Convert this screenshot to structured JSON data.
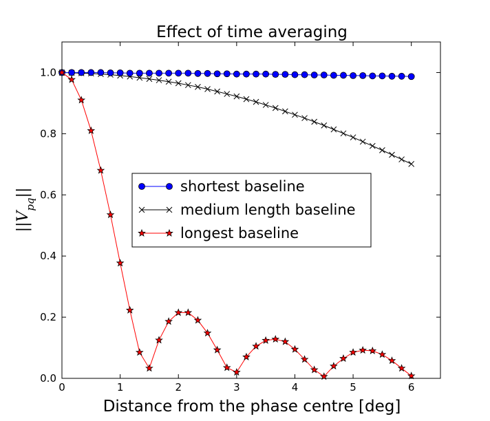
{
  "chart_data": {
    "type": "line",
    "title": "Effect of time averaging",
    "xlabel": "Distance from the phase centre [deg]",
    "ylabel": "||V_pq||",
    "xlim": [
      0,
      6.5
    ],
    "ylim": [
      0,
      1.1
    ],
    "xticks": [
      "0",
      "1",
      "2",
      "3",
      "4",
      "5",
      "6"
    ],
    "yticks": [
      "0.0",
      "0.2",
      "0.4",
      "0.6",
      "0.8",
      "1.0"
    ],
    "grid": false,
    "legend_position": "center",
    "x": [
      0.0,
      0.1667,
      0.3333,
      0.5,
      0.6667,
      0.8333,
      1.0,
      1.1667,
      1.3333,
      1.5,
      1.6667,
      1.8333,
      2.0,
      2.1667,
      2.3333,
      2.5,
      2.6667,
      2.8333,
      3.0,
      3.1667,
      3.3333,
      3.5,
      3.6667,
      3.8333,
      4.0,
      4.1667,
      4.3333,
      4.5,
      4.6667,
      4.8333,
      5.0,
      5.1667,
      5.3333,
      5.5,
      5.6667,
      5.8333,
      6.0
    ],
    "series": [
      {
        "name": "shortest baseline",
        "marker": "circle",
        "color": "#0000ff",
        "values": [
          1.0,
          1.0,
          1.0,
          1.0,
          1.0,
          0.999,
          0.999,
          0.998,
          0.998,
          0.998,
          0.998,
          0.998,
          0.998,
          0.998,
          0.997,
          0.997,
          0.996,
          0.996,
          0.995,
          0.995,
          0.995,
          0.995,
          0.994,
          0.994,
          0.993,
          0.993,
          0.992,
          0.992,
          0.991,
          0.991,
          0.99,
          0.99,
          0.989,
          0.989,
          0.988,
          0.988,
          0.987
        ]
      },
      {
        "name": "medium length baseline",
        "marker": "x",
        "color": "#000000",
        "values": [
          1.0,
          0.999,
          0.998,
          0.997,
          0.995,
          0.993,
          0.99,
          0.987,
          0.983,
          0.979,
          0.975,
          0.97,
          0.965,
          0.959,
          0.953,
          0.946,
          0.938,
          0.93,
          0.922,
          0.913,
          0.904,
          0.894,
          0.884,
          0.873,
          0.862,
          0.851,
          0.839,
          0.827,
          0.814,
          0.801,
          0.788,
          0.774,
          0.76,
          0.746,
          0.731,
          0.716,
          0.701
        ]
      },
      {
        "name": "longest baseline",
        "marker": "star",
        "color": "#ff0000",
        "values": [
          1.0,
          0.977,
          0.91,
          0.81,
          0.68,
          0.535,
          0.377,
          0.223,
          0.085,
          0.033,
          0.125,
          0.186,
          0.215,
          0.215,
          0.19,
          0.148,
          0.093,
          0.035,
          0.02,
          0.07,
          0.105,
          0.124,
          0.128,
          0.12,
          0.095,
          0.062,
          0.028,
          0.006,
          0.04,
          0.065,
          0.085,
          0.092,
          0.09,
          0.078,
          0.058,
          0.033,
          0.008
        ]
      }
    ]
  }
}
